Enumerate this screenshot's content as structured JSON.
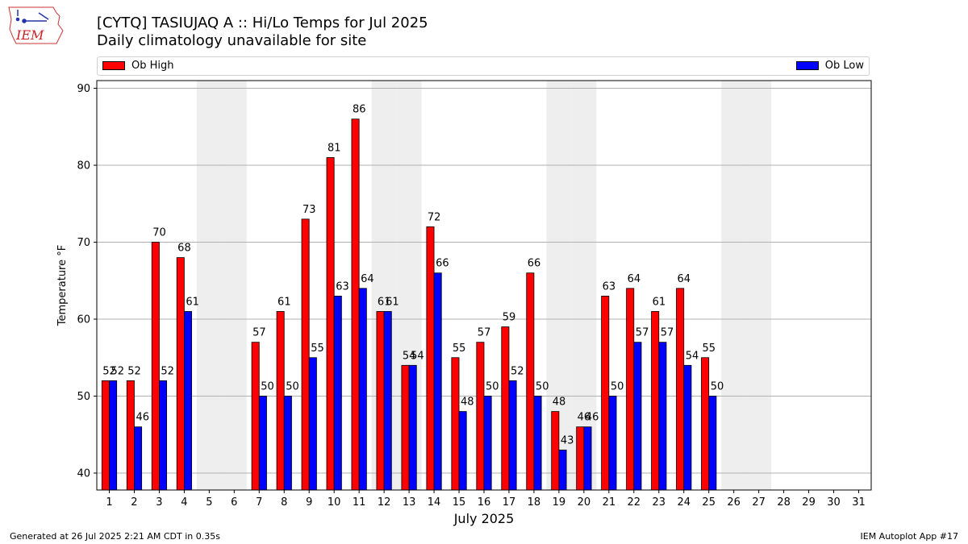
{
  "header": {
    "title_line1": "[CYTQ] TASIUJAQ A :: Hi/Lo Temps for Jul 2025",
    "title_line2": "Daily climatology unavailable for site",
    "logo_text": "IEM"
  },
  "legend": {
    "high_label": "Ob High",
    "low_label": "Ob Low"
  },
  "colors": {
    "high": "#ff0000",
    "low": "#0000ff",
    "weekend_band": "#eeeeee",
    "grid": "#b0b0b0"
  },
  "chart_data": {
    "type": "bar",
    "title": "[CYTQ] TASIUJAQ A :: Hi/Lo Temps for Jul 2025",
    "subtitle": "Daily climatology unavailable for site",
    "xlabel": "July 2025",
    "ylabel": "Temperature °F",
    "ylim": [
      37.8,
      91
    ],
    "yticks": [
      40,
      50,
      60,
      70,
      80,
      90
    ],
    "grid": true,
    "legend_placement": "top",
    "categories": [
      "1",
      "2",
      "3",
      "4",
      "5",
      "6",
      "7",
      "8",
      "9",
      "10",
      "11",
      "12",
      "13",
      "14",
      "15",
      "16",
      "17",
      "18",
      "19",
      "20",
      "21",
      "22",
      "23",
      "24",
      "25",
      "26",
      "27",
      "28",
      "29",
      "30",
      "31"
    ],
    "series": [
      {
        "name": "Ob High",
        "values": [
          52,
          52,
          70,
          68,
          null,
          null,
          57,
          61,
          73,
          81,
          86,
          61,
          54,
          72,
          55,
          57,
          59,
          66,
          48,
          46,
          63,
          64,
          61,
          64,
          55,
          null,
          null,
          null,
          null,
          null,
          null
        ]
      },
      {
        "name": "Ob Low",
        "values": [
          52,
          46,
          52,
          61,
          null,
          null,
          50,
          50,
          55,
          63,
          64,
          61,
          54,
          66,
          48,
          50,
          52,
          50,
          43,
          46,
          50,
          57,
          57,
          54,
          50,
          null,
          null,
          null,
          null,
          null,
          null
        ]
      }
    ],
    "data_labels": {
      "high": [
        "52",
        "52",
        "70",
        "68",
        "",
        "",
        "57",
        "61",
        "73",
        "81",
        "86",
        "61",
        "54",
        "72",
        "55",
        "57",
        "59",
        "66",
        "48",
        "46",
        "63",
        "64",
        "61",
        "64",
        "55",
        "",
        "",
        "",
        "",
        "",
        ""
      ],
      "low": [
        "52",
        "46",
        "52",
        "61",
        "",
        "",
        "50",
        "50",
        "55",
        "63",
        "64",
        "61",
        "54",
        "66",
        "48",
        "50",
        "52",
        "50",
        "43",
        "46",
        "50",
        "57",
        "57",
        "54",
        "50",
        "",
        "",
        "",
        "",
        "",
        ""
      ]
    },
    "shaded_days": [
      5,
      6,
      12,
      13,
      19,
      20,
      26,
      27
    ]
  },
  "footer": {
    "generated": "Generated at 26 Jul 2025 2:21 AM CDT in 0.35s",
    "app": "IEM Autoplot App #17"
  }
}
